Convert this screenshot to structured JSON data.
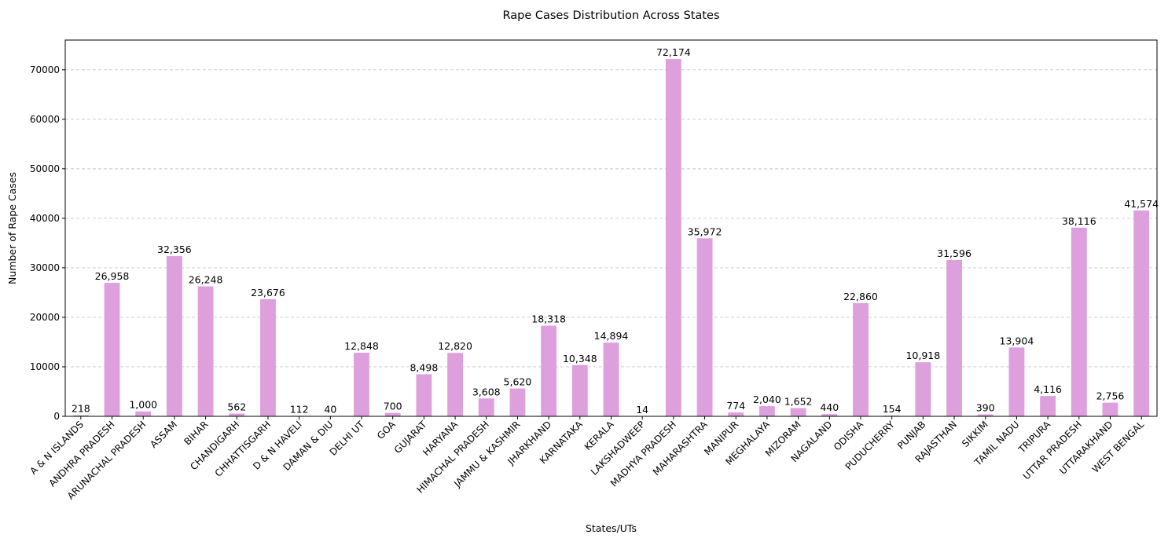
{
  "chart_data": {
    "type": "bar",
    "title": "Rape Cases Distribution Across States",
    "xlabel": "States/UTs",
    "ylabel": "Number of Rape Cases",
    "ylim": [
      0,
      76000
    ],
    "yticks": [
      0,
      10000,
      20000,
      30000,
      40000,
      50000,
      60000,
      70000
    ],
    "grid": "y-dashed",
    "bar_color": "#dda0dd",
    "categories": [
      "A & N ISLANDS",
      "ANDHRA PRADESH",
      "ARUNACHAL PRADESH",
      "ASSAM",
      "BIHAR",
      "CHANDIGARH",
      "CHHATTISGARH",
      "D & N HAVELI",
      "DAMAN & DIU",
      "DELHI UT",
      "GOA",
      "GUJARAT",
      "HARYANA",
      "HIMACHAL PRADESH",
      "JAMMU & KASHMIR",
      "JHARKHAND",
      "KARNATAKA",
      "KERALA",
      "LAKSHADWEEP",
      "MADHYA PRADESH",
      "MAHARASHTRA",
      "MANIPUR",
      "MEGHALAYA",
      "MIZORAM",
      "NAGALAND",
      "ODISHA",
      "PUDUCHERRY",
      "PUNJAB",
      "RAJASTHAN",
      "SIKKIM",
      "TAMIL NADU",
      "TRIPURA",
      "UTTAR PRADESH",
      "UTTARAKHAND",
      "WEST BENGAL"
    ],
    "values": [
      218,
      26958,
      1000,
      32356,
      26248,
      562,
      23676,
      112,
      40,
      12848,
      700,
      8498,
      12820,
      3608,
      5620,
      18318,
      10348,
      14894,
      14,
      72174,
      35972,
      774,
      2040,
      1652,
      440,
      22860,
      154,
      10918,
      31596,
      390,
      13904,
      4116,
      38116,
      2756,
      41574
    ],
    "value_labels": [
      "218",
      "26,958",
      "1,000",
      "32,356",
      "26,248",
      "562",
      "23,676",
      "112",
      "40",
      "12,848",
      "700",
      "8,498",
      "12,820",
      "3,608",
      "5,620",
      "18,318",
      "10,348",
      "14,894",
      "14",
      "72,174",
      "35,972",
      "774",
      "2,040",
      "1,652",
      "440",
      "22,860",
      "154",
      "10,918",
      "31,596",
      "390",
      "13,904",
      "4,116",
      "38,116",
      "2,756",
      "41,574"
    ]
  }
}
